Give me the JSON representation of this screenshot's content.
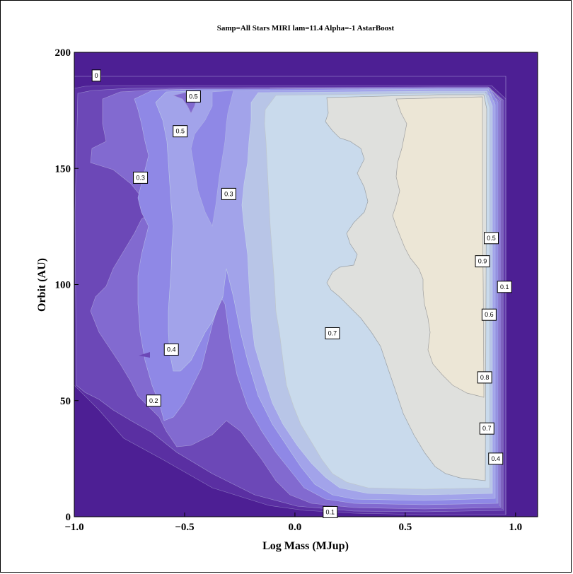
{
  "chart_data": {
    "type": "contour",
    "title": "Samp=All Stars MIRI lam=11.4 Alpha=-1 AstarBoost",
    "xlabel": "Log Mass (MJup)",
    "ylabel": "Orbit (AU)",
    "xlim": [
      -1.0,
      1.1
    ],
    "ylim": [
      0,
      200
    ],
    "x_ticks": [
      -1.0,
      -0.5,
      0.0,
      0.5,
      1.0
    ],
    "x_tick_labels": [
      "−1.0",
      "−0.5",
      "0.0",
      "0.5",
      "1.0"
    ],
    "y_ticks": [
      0,
      50,
      100,
      150,
      200
    ],
    "y_tick_labels": [
      "0",
      "50",
      "100",
      "150",
      "200"
    ],
    "levels": [
      0,
      0.1,
      0.2,
      0.3,
      0.4,
      0.5,
      0.6,
      0.7,
      0.8,
      0.9
    ],
    "level_colors": [
      "#4d1f94",
      "#5a2fa2",
      "#6c48b7",
      "#826ad0",
      "#8f88e6",
      "#a2a3ea",
      "#b8c5e7",
      "#c9daec",
      "#dfe0dd",
      "#ece6d6"
    ],
    "contour_labels": [
      {
        "text": "0",
        "x": -0.9,
        "y": 190
      },
      {
        "text": "0.5",
        "x": -0.46,
        "y": 181
      },
      {
        "text": "0.5",
        "x": -0.52,
        "y": 166
      },
      {
        "text": "0.3",
        "x": -0.7,
        "y": 146
      },
      {
        "text": "0.3",
        "x": -0.3,
        "y": 139
      },
      {
        "text": "0.5",
        "x": 0.89,
        "y": 120
      },
      {
        "text": "0.9",
        "x": 0.85,
        "y": 110
      },
      {
        "text": "0.1",
        "x": 0.95,
        "y": 99
      },
      {
        "text": "0.6",
        "x": 0.88,
        "y": 87
      },
      {
        "text": "0.7",
        "x": 0.17,
        "y": 79
      },
      {
        "text": "0.4",
        "x": -0.56,
        "y": 72
      },
      {
        "text": "0.8",
        "x": 0.86,
        "y": 60
      },
      {
        "text": "0.2",
        "x": -0.64,
        "y": 50
      },
      {
        "text": "0.7",
        "x": 0.87,
        "y": 38
      },
      {
        "text": "0.4",
        "x": 0.91,
        "y": 25
      },
      {
        "text": "0.1",
        "x": 0.16,
        "y": 2
      }
    ]
  }
}
